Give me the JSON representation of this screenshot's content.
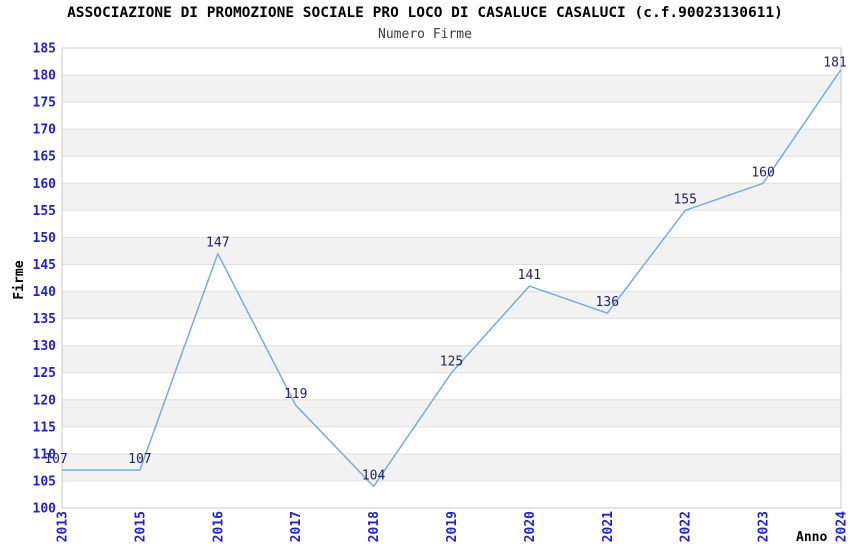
{
  "chart_data": {
    "type": "line",
    "title": "ASSOCIAZIONE DI PROMOZIONE SOCIALE PRO LOCO DI CASALUCE CASALUCI (c.f.90023130611)",
    "subtitle": "Numero Firme",
    "xlabel": "Anno",
    "ylabel": "Firme",
    "categories": [
      "2013",
      "2015",
      "2016",
      "2017",
      "2018",
      "2019",
      "2020",
      "2021",
      "2022",
      "2023",
      "2024"
    ],
    "values": [
      107,
      107,
      147,
      119,
      104,
      125,
      141,
      136,
      155,
      160,
      181
    ],
    "ylim": [
      100,
      185
    ],
    "ytick_step": 5,
    "legend": "none",
    "grid": "horizontal-gridlines-with-alternating-bands",
    "colors": {
      "line": "#7aabdd",
      "tick_label": "#2222cc",
      "data_label": "#222266",
      "band_fill": "#f2f2f2",
      "gridline": "#e0e0e0",
      "plot_border": "#c8c8c8",
      "title": "#000000",
      "subtitle": "#3c3c3c"
    }
  }
}
